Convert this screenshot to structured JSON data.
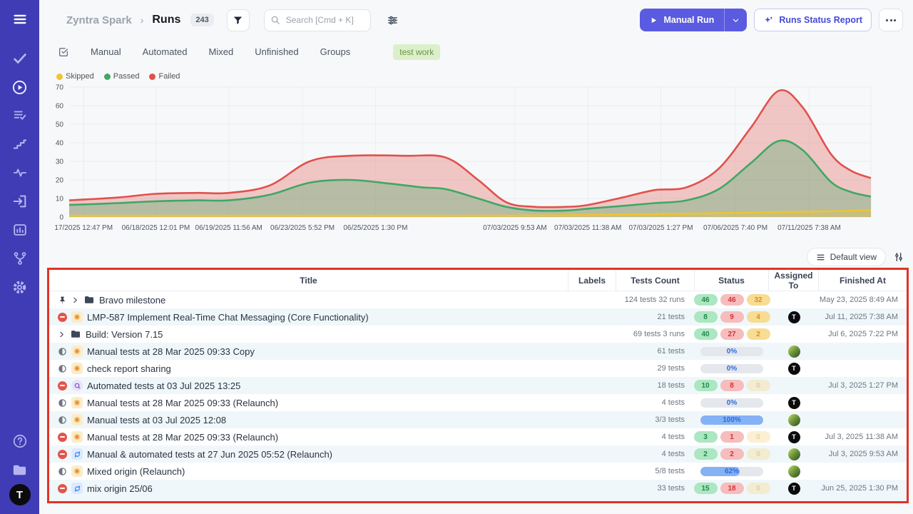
{
  "header": {
    "breadcrumb_project": "Zyntra Spark",
    "breadcrumb_separator": "›",
    "breadcrumb_page": "Runs",
    "count_badge": "243",
    "search_placeholder": "Search [Cmd + K]",
    "manual_run_label": "Manual Run",
    "runs_status_report_label": "Runs Status Report"
  },
  "tabs": {
    "items": [
      "Manual",
      "Automated",
      "Mixed",
      "Unfinished",
      "Groups"
    ],
    "filter_tag": "test work"
  },
  "legend": [
    {
      "label": "Skipped",
      "color": "#eec431"
    },
    {
      "label": "Passed",
      "color": "#3fa863"
    },
    {
      "label": "Failed",
      "color": "#e0524c"
    }
  ],
  "view_toolbar": {
    "default_view_label": "Default view"
  },
  "chart_data": {
    "type": "area",
    "title": "",
    "xlabel": "",
    "ylabel": "",
    "ylim": [
      0,
      70
    ],
    "y_tick_step": 10,
    "grid": true,
    "legend_position": "top-left",
    "x_tick_labels": [
      {
        "label": "17/2025 12:47 PM",
        "pos": 0.018
      },
      {
        "label": "06/18/2025 12:01 PM",
        "pos": 0.108
      },
      {
        "label": "06/19/2025 11:56 AM",
        "pos": 0.199
      },
      {
        "label": "06/23/2025 5:52 PM",
        "pos": 0.291
      },
      {
        "label": "06/25/2025 1:30 PM",
        "pos": 0.382
      },
      {
        "label": "07/03/2025 9:53 AM",
        "pos": 0.556
      },
      {
        "label": "07/03/2025 11:38 AM",
        "pos": 0.647
      },
      {
        "label": "07/03/2025 1:27 PM",
        "pos": 0.738
      },
      {
        "label": "07/06/2025 7:40 PM",
        "pos": 0.831
      },
      {
        "label": "07/11/2025 7:38 AM",
        "pos": 0.923
      }
    ],
    "series": [
      {
        "name": "Failed",
        "color": "#e0524c",
        "fill_opacity": 0.3,
        "points": [
          [
            0,
            9
          ],
          [
            0.06,
            10.5
          ],
          [
            0.108,
            12.5
          ],
          [
            0.16,
            13
          ],
          [
            0.199,
            13
          ],
          [
            0.25,
            17
          ],
          [
            0.3,
            30
          ],
          [
            0.35,
            33
          ],
          [
            0.42,
            33
          ],
          [
            0.47,
            32
          ],
          [
            0.51,
            20
          ],
          [
            0.545,
            8
          ],
          [
            0.58,
            5.5
          ],
          [
            0.62,
            5.5
          ],
          [
            0.647,
            6.5
          ],
          [
            0.69,
            10.5
          ],
          [
            0.73,
            14.5
          ],
          [
            0.77,
            16
          ],
          [
            0.81,
            26
          ],
          [
            0.85,
            48
          ],
          [
            0.885,
            68
          ],
          [
            0.915,
            59
          ],
          [
            0.95,
            34
          ],
          [
            0.975,
            25
          ],
          [
            1,
            21
          ]
        ]
      },
      {
        "name": "Passed",
        "color": "#3fa863",
        "fill_opacity": 0.32,
        "points": [
          [
            0,
            6.5
          ],
          [
            0.06,
            7.5
          ],
          [
            0.108,
            8.5
          ],
          [
            0.16,
            9
          ],
          [
            0.199,
            9
          ],
          [
            0.25,
            12
          ],
          [
            0.3,
            18.5
          ],
          [
            0.35,
            20
          ],
          [
            0.4,
            18
          ],
          [
            0.44,
            16
          ],
          [
            0.47,
            15
          ],
          [
            0.51,
            10
          ],
          [
            0.545,
            5.5
          ],
          [
            0.58,
            3.5
          ],
          [
            0.62,
            3.5
          ],
          [
            0.647,
            4.5
          ],
          [
            0.69,
            6
          ],
          [
            0.73,
            7.5
          ],
          [
            0.77,
            9
          ],
          [
            0.81,
            15
          ],
          [
            0.85,
            29
          ],
          [
            0.885,
            41
          ],
          [
            0.915,
            36
          ],
          [
            0.95,
            19
          ],
          [
            0.975,
            13.5
          ],
          [
            1,
            11
          ]
        ]
      },
      {
        "name": "Skipped",
        "color": "#eec431",
        "fill_opacity": 0.3,
        "points": [
          [
            0,
            0.7
          ],
          [
            0.15,
            0.7
          ],
          [
            0.3,
            0.7
          ],
          [
            0.45,
            0.7
          ],
          [
            0.56,
            0.8
          ],
          [
            0.647,
            1.1
          ],
          [
            0.738,
            1.6
          ],
          [
            0.81,
            2.1
          ],
          [
            0.885,
            2.6
          ],
          [
            0.95,
            3.1
          ],
          [
            1,
            3.7
          ]
        ]
      }
    ]
  },
  "table": {
    "columns": [
      "Title",
      "Labels",
      "Tests Count",
      "Status",
      "Assigned To",
      "Finished At"
    ],
    "rows": [
      {
        "pinned": true,
        "chevron": true,
        "status_icon": null,
        "origin": "folder",
        "title": "Bravo milestone",
        "tests": "124 tests 32 runs",
        "status": {
          "kind": "badges",
          "passed": "46",
          "failed": "46",
          "skipped": "32",
          "skipped_faded": false
        },
        "assignee": null,
        "finished": "May 23, 2025 8:49 AM"
      },
      {
        "pinned": false,
        "chevron": false,
        "status_icon": "stopped",
        "origin": "manual",
        "title": "LMP-587 Implement Real-Time Chat Messaging (Core Functionality)",
        "tests": "21 tests",
        "status": {
          "kind": "badges",
          "passed": "8",
          "failed": "9",
          "skipped": "4",
          "skipped_faded": false
        },
        "assignee": "t",
        "finished": "Jul 11, 2025 7:38 AM"
      },
      {
        "pinned": false,
        "chevron": true,
        "status_icon": null,
        "origin": "folder",
        "title": "Build: Version 7.15",
        "tests": "69 tests 3 runs",
        "status": {
          "kind": "badges",
          "passed": "40",
          "failed": "27",
          "skipped": "2",
          "skipped_faded": false
        },
        "assignee": null,
        "finished": "Jul 6, 2025 7:22 PM"
      },
      {
        "pinned": false,
        "chevron": false,
        "status_icon": "in-progress",
        "origin": "manual",
        "title": "Manual tests at 28 Mar 2025 09:33 Copy",
        "tests": "61 tests",
        "status": {
          "kind": "progress",
          "pct": 0,
          "label": "0%"
        },
        "assignee": "photo",
        "finished": ""
      },
      {
        "pinned": false,
        "chevron": false,
        "status_icon": "in-progress",
        "origin": "manual",
        "title": "check report sharing",
        "tests": "29 tests",
        "status": {
          "kind": "progress",
          "pct": 0,
          "label": "0%"
        },
        "assignee": "t",
        "finished": ""
      },
      {
        "pinned": false,
        "chevron": false,
        "status_icon": "stopped",
        "origin": "automated",
        "title": "Automated tests at 03 Jul 2025 13:25",
        "tests": "18 tests",
        "status": {
          "kind": "badges",
          "passed": "10",
          "failed": "8",
          "skipped": "0",
          "skipped_faded": true
        },
        "assignee": null,
        "finished": "Jul 3, 2025 1:27 PM"
      },
      {
        "pinned": false,
        "chevron": false,
        "status_icon": "in-progress",
        "origin": "manual",
        "title": "Manual tests at 28 Mar 2025 09:33 (Relaunch)",
        "tests": "4 tests",
        "status": {
          "kind": "progress",
          "pct": 0,
          "label": "0%"
        },
        "assignee": "t",
        "finished": ""
      },
      {
        "pinned": false,
        "chevron": false,
        "status_icon": "in-progress",
        "origin": "manual",
        "title": "Manual tests at 03 Jul 2025 12:08",
        "tests": "3/3 tests",
        "status": {
          "kind": "progress",
          "pct": 100,
          "label": "100%"
        },
        "assignee": "photo",
        "finished": ""
      },
      {
        "pinned": false,
        "chevron": false,
        "status_icon": "stopped",
        "origin": "manual",
        "title": "Manual tests at 28 Mar 2025 09:33 (Relaunch)",
        "tests": "4 tests",
        "status": {
          "kind": "badges",
          "passed": "3",
          "failed": "1",
          "skipped": "0",
          "skipped_faded": true
        },
        "assignee": "t",
        "finished": "Jul 3, 2025 11:38 AM"
      },
      {
        "pinned": false,
        "chevron": false,
        "status_icon": "stopped",
        "origin": "mixed",
        "title": "Manual & automated tests at 27 Jun 2025 05:52 (Relaunch)",
        "tests": "4 tests",
        "status": {
          "kind": "badges",
          "passed": "2",
          "failed": "2",
          "skipped": "0",
          "skipped_faded": true
        },
        "assignee": "photo",
        "finished": "Jul 3, 2025 9:53 AM"
      },
      {
        "pinned": false,
        "chevron": false,
        "status_icon": "in-progress",
        "origin": "manual",
        "title": "Mixed origin (Relaunch)",
        "tests": "5/8 tests",
        "status": {
          "kind": "progress",
          "pct": 62,
          "label": "62%"
        },
        "assignee": "photo",
        "finished": ""
      },
      {
        "pinned": false,
        "chevron": false,
        "status_icon": "stopped",
        "origin": "mixed",
        "title": "mix origin 25/06",
        "tests": "33 tests",
        "status": {
          "kind": "badges",
          "passed": "15",
          "failed": "18",
          "skipped": "0",
          "skipped_faded": true
        },
        "assignee": "t",
        "finished": "Jun 25, 2025 1:30 PM"
      }
    ]
  },
  "sidebar": {
    "avatar_initial": "T",
    "icons": [
      "menu",
      "tests-check",
      "runs-play",
      "test-plans",
      "milestones",
      "pulse",
      "import",
      "analytics",
      "branches",
      "settings",
      "help",
      "projects",
      "user-avatar"
    ]
  },
  "colors": {
    "sidebar_bg": "#403cb5",
    "accent": "#5a5be0",
    "annotation_red": "#e23325",
    "row_alt": "#f0f7fa"
  }
}
